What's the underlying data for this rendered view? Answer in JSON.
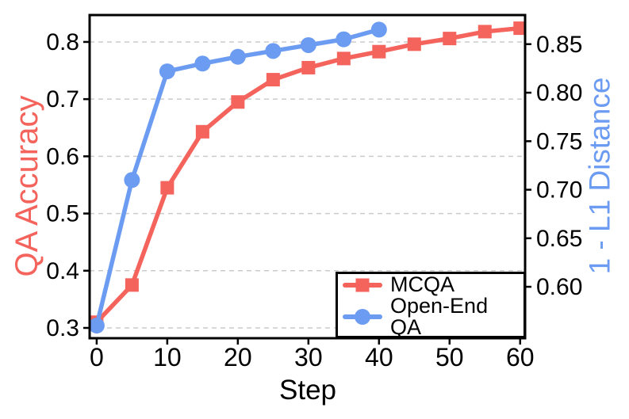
{
  "chart_data": {
    "type": "line",
    "title": "",
    "xlabel": "Step",
    "ylabel_left": "QA Accuracy",
    "ylabel_right": "1 - L1 Distance",
    "xlim": [
      -1,
      60.7
    ],
    "ylim_left": [
      0.282,
      0.847
    ],
    "ylim_right": [
      0.547,
      0.88
    ],
    "xticks": [
      "0",
      "10",
      "20",
      "30",
      "40",
      "50",
      "60"
    ],
    "yticks_left": [
      "0.3",
      "0.4",
      "0.5",
      "0.6",
      "0.7",
      "0.8"
    ],
    "yticks_right": [
      "0.60",
      "0.65",
      "0.70",
      "0.75",
      "0.80",
      "0.85"
    ],
    "grid": "horizontal dashed gridlines at left-axis ticks",
    "legend": {
      "position": "lower right",
      "entries": [
        "MCQA",
        "Open-End QA"
      ]
    },
    "series": [
      {
        "name": "MCQA",
        "axis": "left",
        "marker": "square",
        "color": "#F4635C",
        "x": [
          0,
          5,
          10,
          15,
          20,
          25,
          30,
          35,
          40,
          45,
          50,
          55,
          60
        ],
        "values": [
          0.31,
          0.375,
          0.545,
          0.643,
          0.695,
          0.734,
          0.755,
          0.771,
          0.783,
          0.796,
          0.806,
          0.818,
          0.824
        ]
      },
      {
        "name": "Open-End QA",
        "axis": "right",
        "marker": "circle",
        "color": "#6C9BF2",
        "x": [
          0,
          5,
          10,
          15,
          20,
          25,
          30,
          35,
          40
        ],
        "values": [
          0.56,
          0.71,
          0.822,
          0.83,
          0.837,
          0.843,
          0.849,
          0.855,
          0.865
        ]
      }
    ],
    "colors": {
      "mcqa": "#F4635C",
      "open_end": "#6C9BF2",
      "grid": "#CBCBCB",
      "axis": "#000000",
      "tick_label": "#000000",
      "background": "#FFFFFF"
    }
  }
}
